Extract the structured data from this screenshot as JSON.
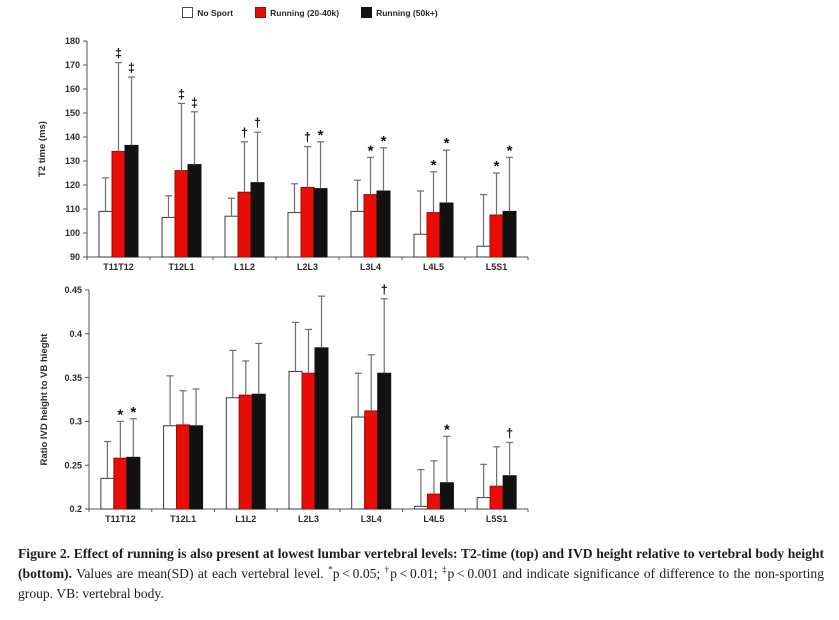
{
  "chart_data": [
    {
      "type": "bar",
      "title": "",
      "ylabel": "T2 time (ms)",
      "xlabel": "",
      "ylim": [
        90,
        180
      ],
      "yticks": [
        90,
        100,
        110,
        120,
        130,
        140,
        150,
        160,
        170,
        180
      ],
      "ytick_labels": [
        "90",
        "100",
        "110",
        "120",
        "130",
        "140",
        "150",
        "160",
        "170",
        "180"
      ],
      "categories": [
        "T11T12",
        "T12L1",
        "L1L2",
        "L2L3",
        "L3L4",
        "L4L5",
        "L5S1"
      ],
      "grid": false,
      "legend_position": "top-center",
      "series": [
        {
          "name": "No Sport",
          "fill": "#ffffff",
          "stroke": "#3a3a3a",
          "values": [
            109,
            106.5,
            107,
            108.5,
            109,
            99.5,
            94.5
          ],
          "err_top": [
            123,
            115.5,
            114.5,
            120.5,
            122,
            117.5,
            116
          ],
          "sig": [
            "",
            "",
            "",
            "",
            "",
            "",
            ""
          ]
        },
        {
          "name": "Running (20-40k)",
          "fill": "#e80d07",
          "stroke": "#9d0b06",
          "values": [
            134,
            126,
            117,
            119,
            116,
            108.5,
            107.5
          ],
          "err_top": [
            171,
            154,
            138,
            136,
            131.5,
            125.5,
            125
          ],
          "sig": [
            "‡",
            "‡",
            "†",
            "†",
            "*",
            "*",
            "*"
          ]
        },
        {
          "name": "Running (50k+)",
          "fill": "#121212",
          "stroke": "#121212",
          "values": [
            136.5,
            128.5,
            121,
            118.5,
            117.5,
            112.5,
            109
          ],
          "err_top": [
            165,
            150.5,
            142,
            138,
            135.5,
            134.5,
            131.5
          ],
          "sig": [
            "‡",
            "‡",
            "†",
            "*",
            "*",
            "*",
            "*"
          ]
        }
      ]
    },
    {
      "type": "bar",
      "title": "",
      "ylabel": "Ratio IVD height to VB hieght",
      "xlabel": "",
      "ylim": [
        0.2,
        0.45
      ],
      "yticks": [
        0.2,
        0.25,
        0.3,
        0.35,
        0.4,
        0.45
      ],
      "ytick_labels": [
        "0.2",
        "0.25",
        "0.3",
        "0.35",
        "0.4",
        "0.45"
      ],
      "categories": [
        "T11T12",
        "T12L1",
        "L1L2",
        "L2L3",
        "L3L4",
        "L4L5",
        "L5S1"
      ],
      "grid": false,
      "legend_position": "none",
      "series": [
        {
          "name": "No Sport",
          "fill": "#ffffff",
          "stroke": "#3a3a3a",
          "values": [
            0.235,
            0.295,
            0.327,
            0.357,
            0.305,
            0.203,
            0.213
          ],
          "err_top": [
            0.277,
            0.352,
            0.381,
            0.413,
            0.355,
            0.245,
            0.251
          ],
          "sig": [
            "",
            "",
            "",
            "",
            "",
            "",
            ""
          ]
        },
        {
          "name": "Running (20-40k)",
          "fill": "#e80d07",
          "stroke": "#9d0b06",
          "values": [
            0.258,
            0.296,
            0.33,
            0.355,
            0.312,
            0.217,
            0.226
          ],
          "err_top": [
            0.3,
            0.335,
            0.369,
            0.405,
            0.376,
            0.255,
            0.271
          ],
          "sig": [
            "*",
            "",
            "",
            "",
            "",
            "",
            ""
          ]
        },
        {
          "name": "Running (50k+)",
          "fill": "#121212",
          "stroke": "#121212",
          "values": [
            0.259,
            0.295,
            0.331,
            0.384,
            0.355,
            0.23,
            0.238
          ],
          "err_top": [
            0.303,
            0.337,
            0.389,
            0.443,
            0.44,
            0.283,
            0.276
          ],
          "sig": [
            "*",
            "",
            "",
            "",
            "†",
            "*",
            "†"
          ]
        }
      ]
    }
  ],
  "colors": {
    "error_bar": "#6f6f6f",
    "axis": "#555555",
    "tick_text": "#2b2b2b"
  },
  "caption": {
    "bold_text": "Figure 2.  Effect of running is also present at lowest lumbar vertebral levels: T2-time (top) and IVD height relative to vertebral body height (bottom).",
    "lead_text": " Values are mean(SD) at each vertebral level. ",
    "sig_items": [
      {
        "symbol": "*",
        "text": "p < 0.05; "
      },
      {
        "symbol": "†",
        "text": "p < 0.01; "
      },
      {
        "symbol": "‡",
        "text": "p < 0.001 and indicate significance of difference to the non-sporting group. VB: vertebral body."
      }
    ]
  }
}
